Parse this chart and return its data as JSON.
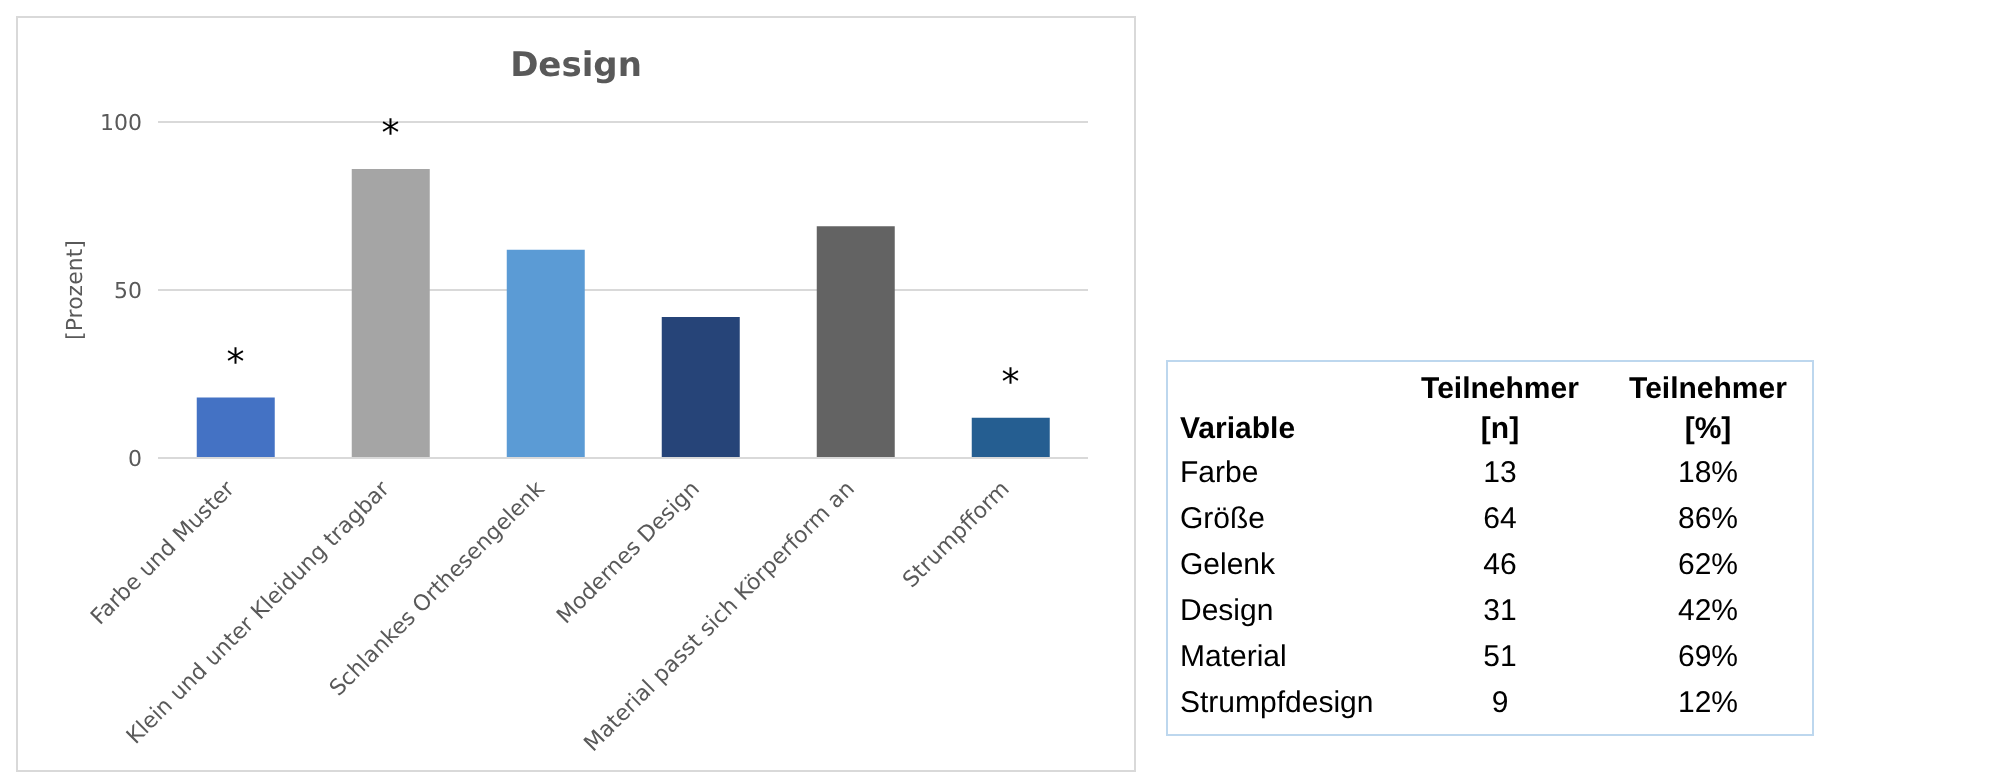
{
  "chart_data": [
    {
      "type": "bar",
      "title": "Design",
      "ylabel": "[Prozent]",
      "categories": [
        "Farbe und Muster",
        "Klein und unter Kleidung tragbar",
        "Schlankes Orthesengelenk",
        "Modernes Design",
        "Material passt sich Körperform an",
        "Strumpfform"
      ],
      "values": [
        18,
        86,
        62,
        42,
        69,
        12
      ],
      "colors": [
        "#4472c4",
        "#a5a5a5",
        "#5b9bd5",
        "#264478",
        "#636363",
        "#255e91"
      ],
      "ylim": [
        0,
        100
      ],
      "yticks": [
        0,
        50,
        100
      ],
      "grid": "y",
      "annotations": [
        {
          "text": "*",
          "x": "Farbe und Muster",
          "y": 18
        },
        {
          "text": "*",
          "x": "Klein und unter Kleidung tragbar",
          "y": 86
        },
        {
          "text": "*",
          "x": "Strumpfform",
          "y": 12
        }
      ]
    },
    {
      "type": "other",
      "xlabel": "Variable",
      "data_labels": true,
      "categories": [
        "Farbe",
        "Größe",
        "Gelenk",
        "Design",
        "Material",
        "Strumpfdesign"
      ],
      "series": [
        {
          "name": "Teilnehmer [n]",
          "values": [
            13,
            64,
            46,
            31,
            51,
            9
          ]
        },
        {
          "name": "Teilnehmer [%]",
          "values": [
            18,
            86,
            62,
            42,
            69,
            12
          ],
          "value_labels": [
            "18%",
            "86%",
            "62%",
            "42%",
            "69%",
            "12%"
          ]
        }
      ]
    }
  ]
}
